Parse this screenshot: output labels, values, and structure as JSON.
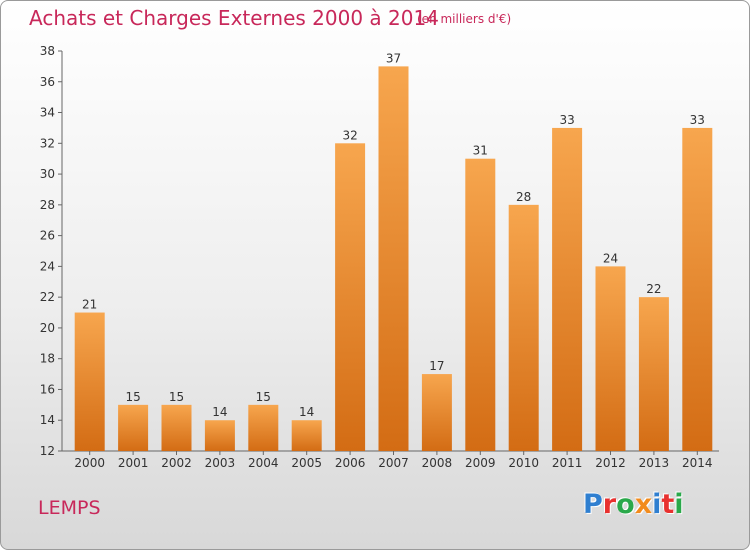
{
  "header": {
    "title": "Achats et Charges Externes 2000 à 2014",
    "subtitle": "(en milliers d'€)"
  },
  "footer": {
    "location": "LEMPS",
    "logo_text": "Proxiti",
    "logo_colors": [
      "#2f7fd0",
      "#e8312f",
      "#2aa84a",
      "#f28b1c",
      "#2f7fd0",
      "#e8312f",
      "#2aa84a"
    ]
  },
  "colors": {
    "bar_top": "#f7a64e",
    "bar_bottom": "#d36c14",
    "title": "#c8285a"
  },
  "chart_data": {
    "type": "bar",
    "categories": [
      "2000",
      "2001",
      "2002",
      "2003",
      "2004",
      "2005",
      "2006",
      "2007",
      "2008",
      "2009",
      "2010",
      "2011",
      "2012",
      "2013",
      "2014"
    ],
    "values": [
      21,
      15,
      15,
      14,
      15,
      14,
      32,
      37,
      17,
      31,
      28,
      33,
      24,
      22,
      33
    ],
    "data_labels": [
      "21",
      "15",
      "15",
      "14",
      "15",
      "14",
      "32",
      "37",
      "17",
      "31",
      "28",
      "33",
      "24",
      "22",
      "33"
    ],
    "title": "Achats et Charges Externes 2000 à 2014",
    "xlabel": "",
    "ylabel": "",
    "ylim": [
      12,
      38
    ],
    "yticks": [
      12,
      14,
      16,
      18,
      20,
      22,
      24,
      26,
      28,
      30,
      32,
      34,
      36,
      38
    ],
    "grid": false,
    "legend": "none"
  }
}
